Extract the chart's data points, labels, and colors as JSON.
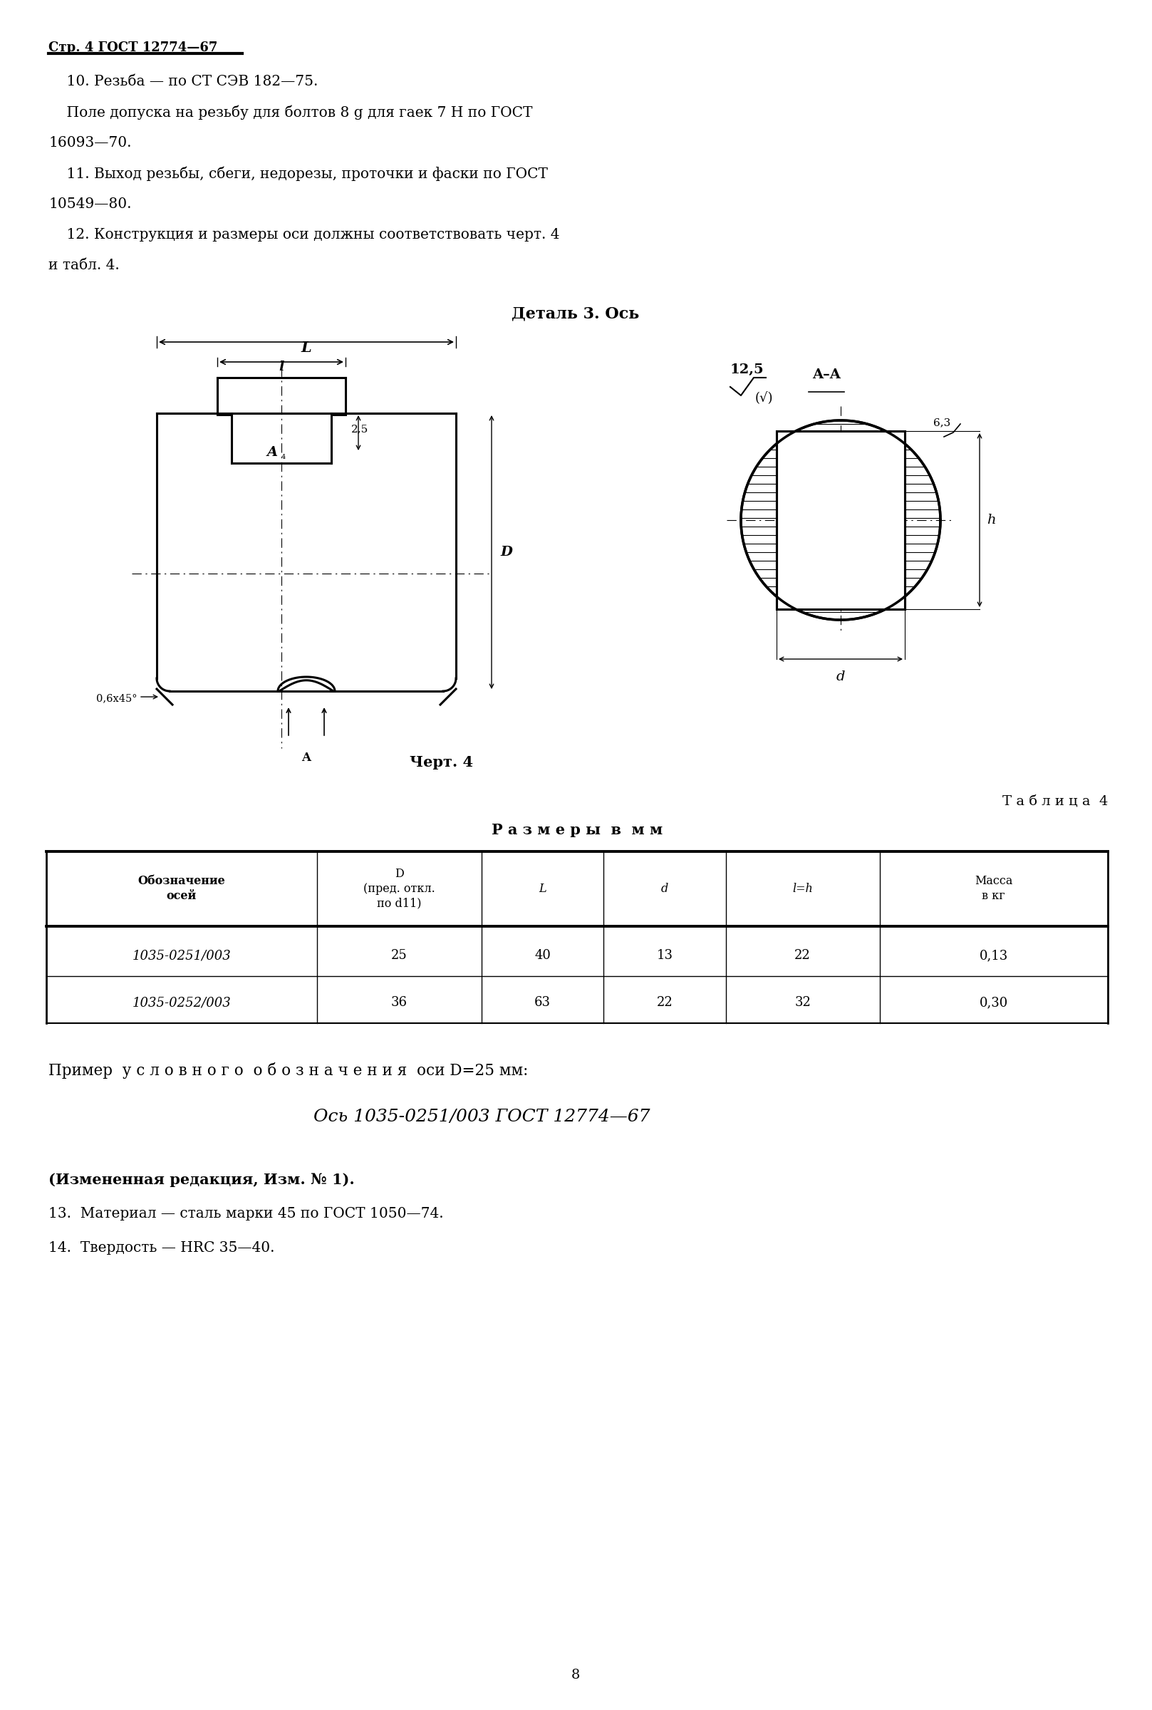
{
  "page_header": "Стр. 4 ГОСТ 12774—67",
  "text_lines": [
    [
      "    10. Резьба — по СТ СЭВ 182—75.",
      false
    ],
    [
      "    Поле допуска на резьбу для болтов 8 g для гаек 7 H по ГОСТ",
      false
    ],
    [
      "̖93—70.",
      false
    ],
    [
      "    11. Выход резьбы, сбеги, недорезы, проточки и фаски по ГОСТ",
      false
    ],
    [
      "̕49—80.",
      false
    ],
    [
      "    12. Конструкция и размеры оси должны соответствовать черт. 4",
      false
    ],
    [
      "и табл. 4.",
      false
    ]
  ],
  "detail_title": "Деталь 3. Ось",
  "chert_label": "Черт. 4",
  "table_title": "Т а б л и ц а  4",
  "table_subtitle": "Р а з м е р ы  в  м м",
  "table_headers": [
    "Обозначение\nосей",
    "D\n(пред. откл.\nпо d11)",
    "L",
    "d",
    "l=h",
    "Масса\nв кг"
  ],
  "table_rows": [
    [
      "1035-0251/003",
      "25",
      "40",
      "13",
      "22",
      "0,13"
    ],
    [
      "1035-0252/003",
      "36",
      "63",
      "22",
      "32",
      "0,30"
    ]
  ],
  "example_line1": "Пример  у с л о в н о г о  о б о з н а ч е н и я  оси D=25 мм:",
  "example_line2": "Ось 1035-0251/003 ГОСТ 12774—67",
  "footer1": "(Измененная редакция, Изм. № 1).",
  "footer2": "13.  Материал — сталь марки 45 по ГОСТ 1050—74.",
  "footer3": "14.  Твердость — HRC 35—40.",
  "page_number": "8"
}
